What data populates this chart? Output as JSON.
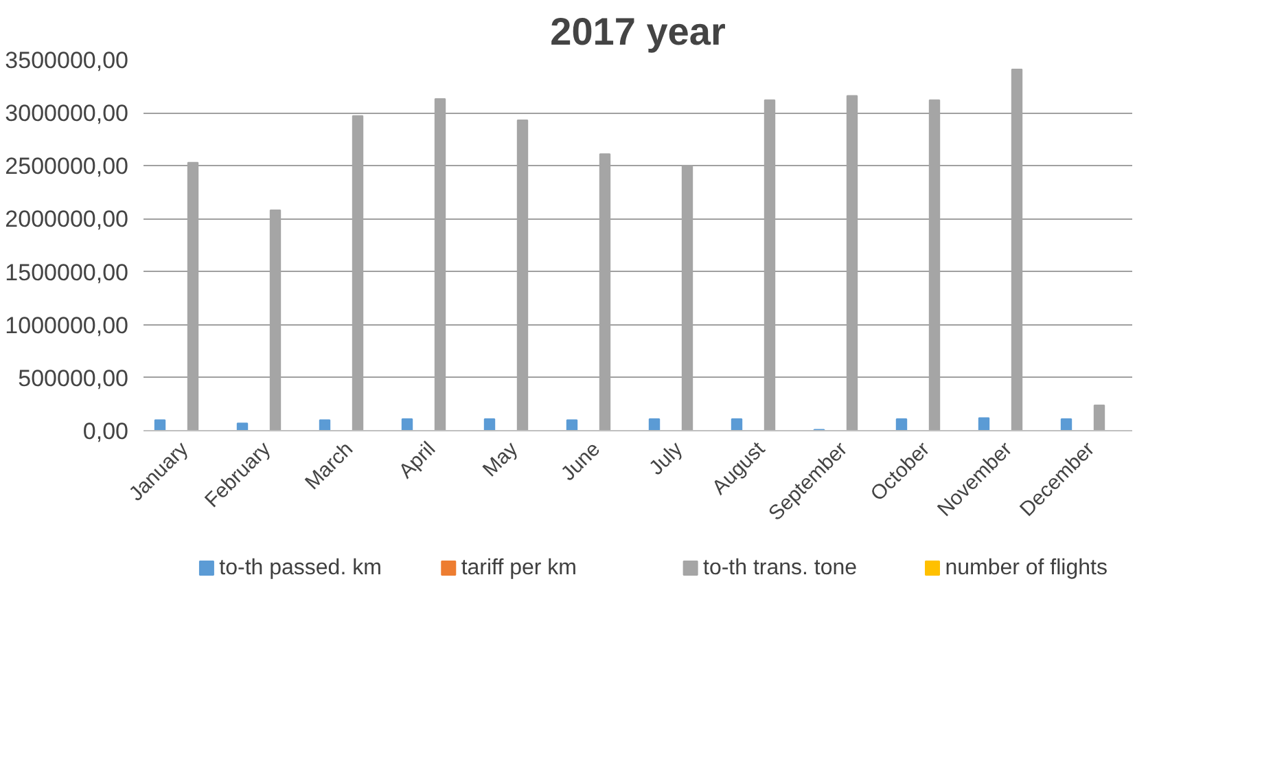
{
  "chart_data": {
    "type": "bar",
    "title": "2017 year",
    "categories": [
      "January",
      "February",
      "March",
      "April",
      "May",
      "June",
      "July",
      "August",
      "September",
      "October",
      "November",
      "December"
    ],
    "series": [
      {
        "name": "to-th passed. km",
        "color": "#5b9bd5",
        "values": [
          100000,
          70000,
          100000,
          110000,
          110000,
          100000,
          110000,
          110000,
          10000,
          110000,
          120000,
          110000
        ]
      },
      {
        "name": "tariff per km",
        "color": "#ed7d31",
        "values": [
          0,
          0,
          0,
          0,
          0,
          0,
          0,
          0,
          0,
          0,
          0,
          0
        ]
      },
      {
        "name": "to-th trans. tone",
        "color": "#a5a5a5",
        "values": [
          2530000,
          2080000,
          2970000,
          3130000,
          2930000,
          2610000,
          2500000,
          3120000,
          3160000,
          3120000,
          3410000,
          240000
        ]
      },
      {
        "name": "number of flights",
        "color": "#ffc000",
        "values": [
          0,
          0,
          0,
          0,
          0,
          0,
          0,
          0,
          0,
          0,
          0,
          0
        ]
      }
    ],
    "ylim": [
      0,
      3500000
    ],
    "yticks": [
      {
        "value": 0,
        "label": "0,00"
      },
      {
        "value": 500000,
        "label": "500000,00"
      },
      {
        "value": 1000000,
        "label": "1000000,00"
      },
      {
        "value": 1500000,
        "label": "1500000,00"
      },
      {
        "value": 2000000,
        "label": "2000000,00"
      },
      {
        "value": 2500000,
        "label": "2500000,00"
      },
      {
        "value": 3000000,
        "label": "3000000,00"
      },
      {
        "value": 3500000,
        "label": "3500000,00"
      }
    ],
    "grid": "y",
    "legend": "bottom"
  }
}
